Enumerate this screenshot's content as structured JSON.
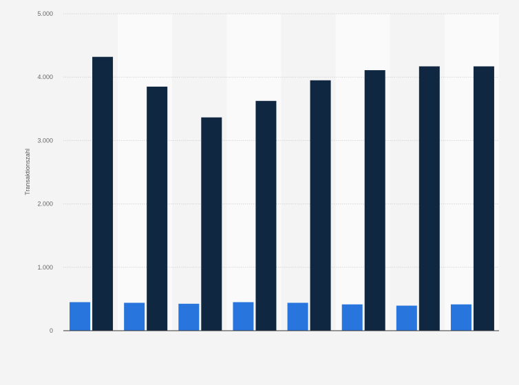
{
  "chart_data": {
    "type": "bar",
    "ylabel": "Transaktionszahl",
    "ylim": [
      0,
      5000
    ],
    "yticks": [
      0,
      1000,
      2000,
      3000,
      4000,
      5000
    ],
    "ytick_labels": [
      "0",
      "1.000",
      "2.000",
      "3.000",
      "4.000",
      "5.000"
    ],
    "categories": [
      "",
      "",
      "",
      "",
      "",
      "",
      "",
      ""
    ],
    "series": [
      {
        "values": [
          450,
          440,
          425,
          450,
          440,
          415,
          395,
          415
        ]
      },
      {
        "values": [
          4320,
          3850,
          3365,
          3625,
          3950,
          4110,
          4170,
          4170
        ]
      }
    ],
    "grid": true,
    "legend": "none"
  },
  "colors": {
    "series": [
      "#2876dd",
      "#0f2741"
    ],
    "band_light": "#fafafa",
    "band_dark": "#f4f4f4",
    "grid": "#d5d5d5",
    "axis": "#333333"
  }
}
